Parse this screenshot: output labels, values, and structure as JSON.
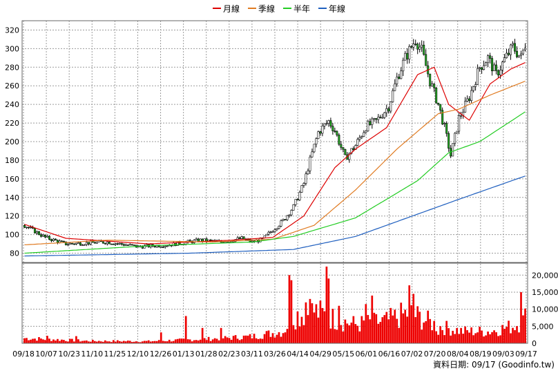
{
  "chart_data": {
    "type": "line",
    "legend": {
      "placement": "top-center",
      "items": [
        {
          "name": "月線",
          "color": "#dd0000"
        },
        {
          "name": "季線",
          "color": "#e07a20"
        },
        {
          "name": "半年",
          "color": "#22cc22"
        },
        {
          "name": "年線",
          "color": "#1f5fbf"
        }
      ]
    },
    "price_axis": {
      "ylim": [
        70,
        330
      ],
      "ticks": [
        80,
        100,
        120,
        140,
        160,
        180,
        200,
        220,
        240,
        260,
        280,
        300,
        320
      ]
    },
    "volume_axis": {
      "ylim": [
        0,
        23500
      ],
      "ticks": [
        0,
        5000,
        10000,
        15000,
        20000
      ],
      "tick_labels": [
        "0",
        "5,000",
        "10,000",
        "15,000",
        "20,000"
      ]
    },
    "x_labels": [
      "09/18",
      "10/07",
      "10/23",
      "11/10",
      "11/25",
      "12/10",
      "12/26",
      "01/13",
      "01/28",
      "02/23",
      "03/11",
      "03/26",
      "04/14",
      "04/29",
      "05/15",
      "06/01",
      "06/16",
      "07/02",
      "07/20",
      "08/04",
      "08/19",
      "09/03",
      "09/17"
    ],
    "n_days": 243,
    "grid": true,
    "candle_colors": {
      "up": "#ffffff",
      "down": "#22aa22",
      "up_alt": "#1f9d1f"
    },
    "volume_color": "#ee0000",
    "price_anchors": [
      [
        0,
        110
      ],
      [
        10,
        97
      ],
      [
        20,
        90
      ],
      [
        40,
        92
      ],
      [
        55,
        87
      ],
      [
        70,
        89
      ],
      [
        85,
        94
      ],
      [
        95,
        92
      ],
      [
        105,
        96
      ],
      [
        110,
        92
      ],
      [
        115,
        95
      ],
      [
        120,
        105
      ],
      [
        125,
        115
      ],
      [
        130,
        130
      ],
      [
        135,
        155
      ],
      [
        138,
        180
      ],
      [
        142,
        210
      ],
      [
        147,
        222
      ],
      [
        150,
        212
      ],
      [
        155,
        182
      ],
      [
        160,
        196
      ],
      [
        165,
        216
      ],
      [
        170,
        222
      ],
      [
        176,
        238
      ],
      [
        180,
        268
      ],
      [
        184,
        290
      ],
      [
        189,
        310
      ],
      [
        192,
        298
      ],
      [
        196,
        265
      ],
      [
        200,
        240
      ],
      [
        203,
        215
      ],
      [
        206,
        185
      ],
      [
        210,
        225
      ],
      [
        215,
        248
      ],
      [
        220,
        280
      ],
      [
        224,
        290
      ],
      [
        228,
        272
      ],
      [
        232,
        288
      ],
      [
        236,
        302
      ],
      [
        240,
        290
      ],
      [
        242,
        305
      ]
    ],
    "ma_month": [
      [
        0,
        111
      ],
      [
        20,
        96
      ],
      [
        60,
        90
      ],
      [
        100,
        94
      ],
      [
        120,
        97
      ],
      [
        135,
        120
      ],
      [
        150,
        172
      ],
      [
        160,
        192
      ],
      [
        175,
        215
      ],
      [
        190,
        272
      ],
      [
        198,
        280
      ],
      [
        205,
        240
      ],
      [
        215,
        223
      ],
      [
        225,
        262
      ],
      [
        235,
        278
      ],
      [
        242,
        285
      ]
    ],
    "ma_quarter": [
      [
        0,
        89
      ],
      [
        40,
        94
      ],
      [
        90,
        92
      ],
      [
        120,
        95
      ],
      [
        140,
        110
      ],
      [
        160,
        148
      ],
      [
        180,
        192
      ],
      [
        200,
        230
      ],
      [
        210,
        235
      ],
      [
        225,
        250
      ],
      [
        242,
        265
      ]
    ],
    "ma_half": [
      [
        0,
        80
      ],
      [
        60,
        88
      ],
      [
        110,
        92
      ],
      [
        130,
        98
      ],
      [
        160,
        118
      ],
      [
        190,
        158
      ],
      [
        205,
        188
      ],
      [
        220,
        200
      ],
      [
        242,
        232
      ]
    ],
    "ma_year": [
      [
        0,
        77
      ],
      [
        80,
        80
      ],
      [
        130,
        84
      ],
      [
        160,
        98
      ],
      [
        190,
        122
      ],
      [
        210,
        138
      ],
      [
        242,
        163
      ]
    ],
    "volume_anchors": [
      [
        0,
        1500
      ],
      [
        30,
        700
      ],
      [
        60,
        600
      ],
      [
        90,
        1300
      ],
      [
        110,
        2000
      ],
      [
        125,
        3500
      ],
      [
        130,
        8000
      ],
      [
        140,
        9500
      ],
      [
        148,
        7500
      ],
      [
        160,
        5500
      ],
      [
        175,
        6500
      ],
      [
        186,
        9000
      ],
      [
        200,
        5000
      ],
      [
        212,
        3500
      ],
      [
        225,
        3500
      ],
      [
        236,
        5000
      ],
      [
        242,
        7000
      ]
    ],
    "volume_spikes": [
      [
        11,
        2200
      ],
      [
        25,
        2100
      ],
      [
        66,
        3200
      ],
      [
        78,
        8000
      ],
      [
        86,
        4500
      ],
      [
        95,
        4500
      ],
      [
        128,
        20000
      ],
      [
        129,
        18500
      ],
      [
        136,
        12000
      ],
      [
        138,
        13000
      ],
      [
        146,
        22500
      ],
      [
        147,
        19000
      ],
      [
        152,
        11000
      ],
      [
        165,
        11500
      ],
      [
        168,
        14000
      ],
      [
        186,
        17000
      ],
      [
        188,
        14500
      ],
      [
        200,
        2500
      ],
      [
        222,
        2000
      ],
      [
        240,
        15000
      ],
      [
        242,
        10200
      ]
    ],
    "footer": "資料日期: 09/17  (Goodinfo.tw)"
  }
}
